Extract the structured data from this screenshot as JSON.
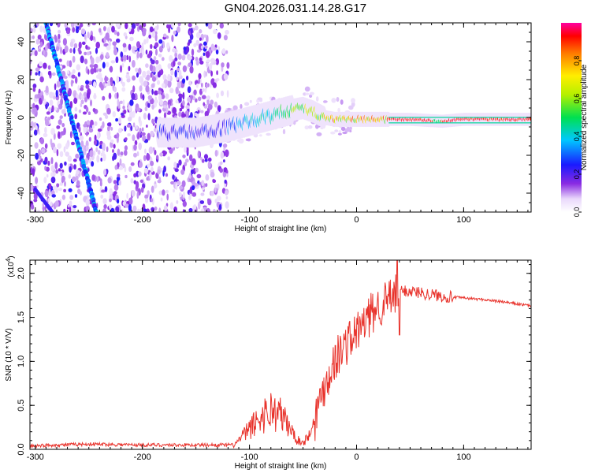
{
  "title": "GN04.2026.031.14.28.G17",
  "chart_data": [
    {
      "id": "spectrogram",
      "type": "heatmap",
      "xlabel": "Height of straight line (km)",
      "ylabel": "Frequency (Hz)",
      "xlim": [
        -305,
        163
      ],
      "ylim": [
        -50,
        50
      ],
      "xticks": [
        -300,
        -200,
        -100,
        0,
        100
      ],
      "yticks": [
        -40,
        -20,
        0,
        20,
        40
      ],
      "colorbar": {
        "label": "Normalized spectral amplitude",
        "ticks": [
          0.0,
          0.2,
          0.4,
          0.6,
          0.8
        ]
      },
      "ridge": {
        "x": [
          -180,
          -150,
          -120,
          -100,
          -80,
          -60,
          -50,
          -40,
          -30,
          -20,
          -10,
          0,
          10,
          50,
          80,
          100,
          163
        ],
        "y": [
          -8,
          -8,
          -5,
          -2,
          1,
          4,
          5,
          3,
          0,
          -1,
          -1,
          -1,
          -1,
          -1,
          -2,
          -1,
          -1
        ]
      },
      "line_feature": {
        "x": [
          -290,
          -243
        ],
        "y": [
          50,
          -50
        ]
      }
    },
    {
      "id": "snr",
      "type": "line",
      "xlabel": "Height of straight line (km)",
      "ylabel": "SNR (10 * V/V)",
      "multiplier": "(x10",
      "multiplier_exp": "4",
      "multiplier_close": ")",
      "xlim": [
        -305,
        163
      ],
      "ylim": [
        0,
        2.15
      ],
      "xticks": [
        -300,
        -200,
        -100,
        0,
        100
      ],
      "yticks": [
        0.0,
        0.5,
        1.0,
        1.5,
        2.0
      ],
      "color": "#e8322b",
      "x": [
        -305,
        -250,
        -200,
        -150,
        -115,
        -100,
        -90,
        -80,
        -70,
        -60,
        -55,
        -50,
        -45,
        -40,
        -35,
        -30,
        -20,
        -10,
        0,
        10,
        20,
        30,
        40,
        50,
        60,
        80,
        100,
        120,
        140,
        163
      ],
      "values": [
        0.02,
        0.04,
        0.03,
        0.03,
        0.03,
        0.18,
        0.28,
        0.35,
        0.3,
        0.15,
        0.08,
        0.06,
        0.12,
        0.3,
        0.55,
        0.75,
        1.05,
        1.22,
        1.35,
        1.5,
        1.65,
        1.72,
        1.8,
        1.8,
        1.78,
        1.74,
        1.72,
        1.7,
        1.67,
        1.63
      ]
    }
  ]
}
